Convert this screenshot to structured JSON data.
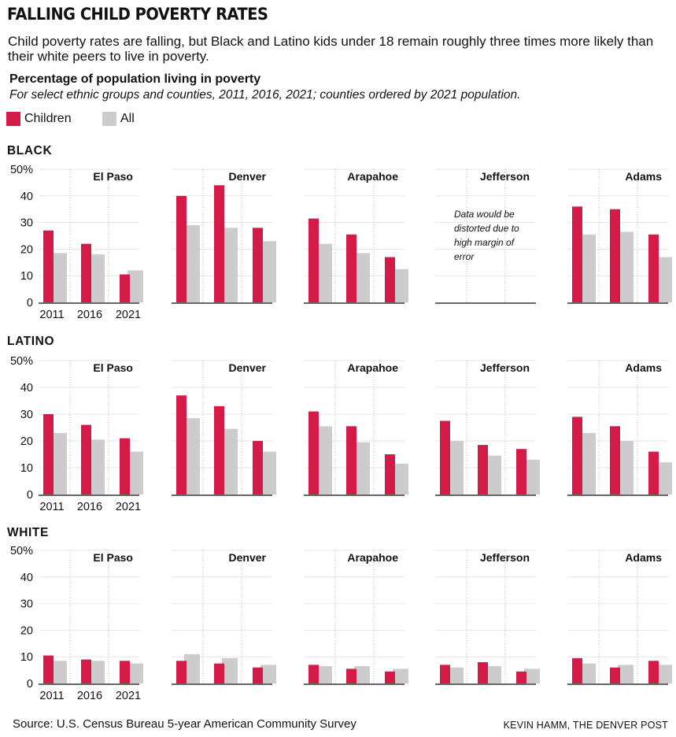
{
  "header": {
    "title": "FALLING CHILD POVERTY RATES",
    "subtitle": "Child poverty rates are falling, but Black and Latino kids under 18 remain roughly three times more likely than their white peers to live in poverty.",
    "chart_title": "Percentage of population living in poverty",
    "chart_subtitle": "For select ethnic groups and counties, 2011, 2016, 2021; counties ordered by 2021 population."
  },
  "legend": [
    {
      "name": "Children",
      "color": "#d41a46"
    },
    {
      "name": "All",
      "color": "#cccccc"
    }
  ],
  "footer": {
    "source": "Source: U.S. Census Bureau 5-year American Community Survey",
    "credit": "KEVIN HAMM, THE DENVER POST"
  },
  "chart_data": {
    "type": "bar",
    "categories": [
      "2011",
      "2016",
      "2021"
    ],
    "ylim": [
      0,
      50
    ],
    "yticks": [
      "0",
      "10",
      "20",
      "30",
      "40",
      "50%"
    ],
    "counties": [
      "El Paso",
      "Denver",
      "Arapahoe",
      "Jefferson",
      "Adams"
    ],
    "groups": [
      {
        "name": "BLACK",
        "panels": [
          {
            "county": "El Paso",
            "children": [
              27,
              22,
              10.5
            ],
            "all": [
              18.5,
              18,
              12
            ]
          },
          {
            "county": "Denver",
            "children": [
              40,
              44,
              28
            ],
            "all": [
              29,
              28,
              23
            ]
          },
          {
            "county": "Arapahoe",
            "children": [
              31.5,
              25.5,
              17
            ],
            "all": [
              22,
              18.5,
              12.5
            ]
          },
          {
            "county": "Jefferson",
            "children": [],
            "all": [],
            "note": "Data would be distorted due to high margin of error"
          },
          {
            "county": "Adams",
            "children": [
              36,
              35,
              25.5
            ],
            "all": [
              25.5,
              26.5,
              17
            ]
          }
        ]
      },
      {
        "name": "LATINO",
        "panels": [
          {
            "county": "El Paso",
            "children": [
              30,
              26,
              21
            ],
            "all": [
              23,
              20.5,
              16
            ]
          },
          {
            "county": "Denver",
            "children": [
              37,
              33,
              20
            ],
            "all": [
              28.5,
              24.5,
              16
            ]
          },
          {
            "county": "Arapahoe",
            "children": [
              31,
              25.5,
              15
            ],
            "all": [
              25.5,
              19.5,
              11.5
            ]
          },
          {
            "county": "Jefferson",
            "children": [
              27.5,
              18.5,
              17
            ],
            "all": [
              20,
              14.5,
              13
            ]
          },
          {
            "county": "Adams",
            "children": [
              29,
              25.5,
              16
            ],
            "all": [
              23,
              20,
              12
            ]
          }
        ]
      },
      {
        "name": "WHITE",
        "panels": [
          {
            "county": "El Paso",
            "children": [
              10.5,
              9,
              8.5
            ],
            "all": [
              8.5,
              8.5,
              7.5
            ]
          },
          {
            "county": "Denver",
            "children": [
              8.5,
              7.5,
              6
            ],
            "all": [
              11,
              9.5,
              7
            ]
          },
          {
            "county": "Arapahoe",
            "children": [
              7,
              5.5,
              4.5
            ],
            "all": [
              6.5,
              6.5,
              5.5
            ]
          },
          {
            "county": "Jefferson",
            "children": [
              7,
              8,
              4.5
            ],
            "all": [
              6,
              6.5,
              5.5
            ]
          },
          {
            "county": "Adams",
            "children": [
              9.5,
              6,
              8.5
            ],
            "all": [
              7.5,
              7,
              7
            ]
          }
        ]
      }
    ]
  }
}
